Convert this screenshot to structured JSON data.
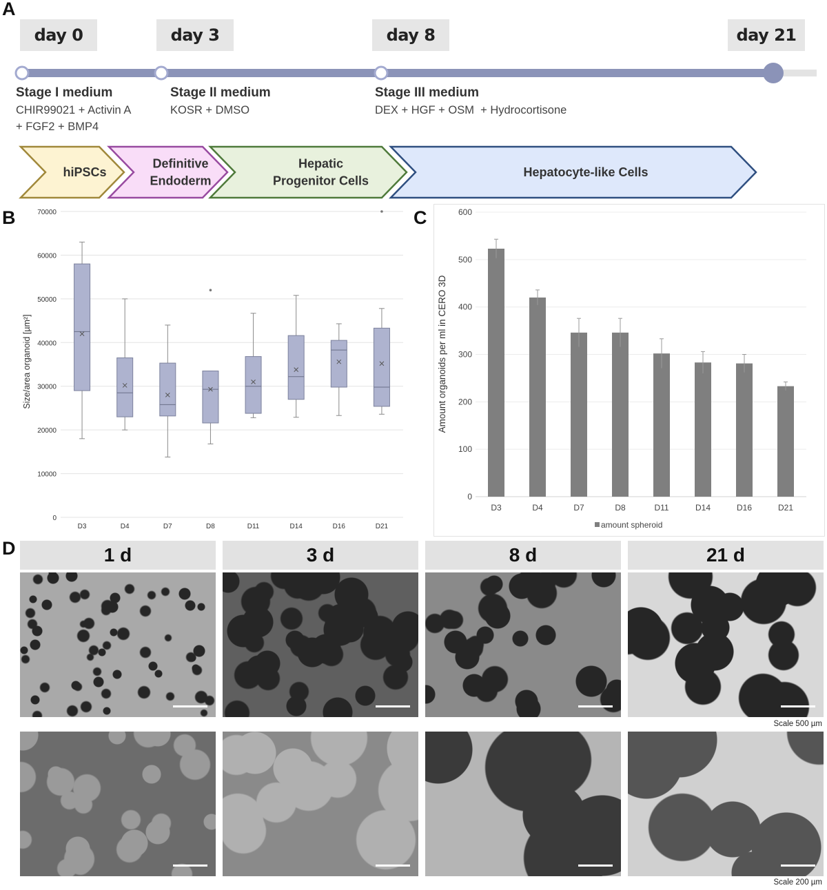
{
  "panel_letters": {
    "a": "A",
    "b": "B",
    "c": "C",
    "d": "D"
  },
  "timeline": {
    "days": [
      "day 0",
      "day 3",
      "day 8",
      "day 21"
    ],
    "stages": [
      {
        "title": "Stage I medium",
        "lines": [
          "CHIR99021 + Activin A",
          "+ FGF2 + BMP4"
        ]
      },
      {
        "title": "Stage II medium",
        "lines": [
          "KOSR + DMSO"
        ]
      },
      {
        "title": "Stage III medium",
        "lines": [
          "DEX + HGF + OSM  + Hydrocortisone"
        ]
      }
    ],
    "line_color": "#8b93b8",
    "cell_types": [
      {
        "lines": [
          "hiPSCs"
        ],
        "fill": "#fdf3d2",
        "stroke": "#a0883a"
      },
      {
        "lines": [
          "Definitive",
          "Endoderm"
        ],
        "fill": "#f9ddf8",
        "stroke": "#984aa0"
      },
      {
        "lines": [
          "Hepatic",
          "Progenitor Cells"
        ],
        "fill": "#e8f1dd",
        "stroke": "#4e7a3a"
      },
      {
        "lines": [
          "Hepatocyte-like Cells"
        ],
        "fill": "#dee8fb",
        "stroke": "#2f4f80"
      }
    ]
  },
  "chart_data": [
    {
      "type": "box",
      "panel": "B",
      "ylabel": "Size/area organoid [µm²]",
      "xlabel": "",
      "categories": [
        "D3",
        "D4",
        "D7",
        "D8",
        "D11",
        "D14",
        "D16",
        "D21"
      ],
      "ylim": [
        0,
        70000
      ],
      "yticks": [
        "0",
        "10000",
        "20000",
        "30000",
        "40000",
        "50000",
        "60000",
        "70000"
      ],
      "grid": true,
      "color": "#aeb3cf",
      "boxes": [
        {
          "min": 18000,
          "q1": 29000,
          "median": 42500,
          "q3": 58000,
          "max": 63000,
          "mean": 42000,
          "outliers": []
        },
        {
          "min": 20000,
          "q1": 23000,
          "median": 28500,
          "q3": 36500,
          "max": 50000,
          "mean": 30200,
          "outliers": []
        },
        {
          "min": 13800,
          "q1": 23200,
          "median": 25800,
          "q3": 35300,
          "max": 44000,
          "mean": 28000,
          "outliers": []
        },
        {
          "min": 16800,
          "q1": 21600,
          "median": 29300,
          "q3": 33500,
          "max": 33500,
          "mean": 29300,
          "outliers": [
            52000
          ]
        },
        {
          "min": 22800,
          "q1": 23800,
          "median": 30000,
          "q3": 36800,
          "max": 46700,
          "mean": 31000,
          "outliers": []
        },
        {
          "min": 22900,
          "q1": 27000,
          "median": 32200,
          "q3": 41600,
          "max": 50800,
          "mean": 33800,
          "outliers": []
        },
        {
          "min": 23300,
          "q1": 29800,
          "median": 38300,
          "q3": 40500,
          "max": 44300,
          "mean": 35600,
          "outliers": []
        },
        {
          "min": 23600,
          "q1": 25400,
          "median": 29800,
          "q3": 43300,
          "max": 47800,
          "mean": 35200,
          "outliers": [
            70000
          ]
        }
      ]
    },
    {
      "type": "bar",
      "panel": "C",
      "ylabel": "Amount organoids per ml in CERO 3D",
      "xlabel": "",
      "categories": [
        "D3",
        "D4",
        "D7",
        "D8",
        "D11",
        "D14",
        "D16",
        "D21"
      ],
      "ylim": [
        0,
        600
      ],
      "yticks": [
        "0",
        "100",
        "200",
        "300",
        "400",
        "500",
        "600"
      ],
      "grid": true,
      "legend": "bottom",
      "color": "#7f7f7f",
      "series": [
        {
          "name": "amount spheroid",
          "values": [
            523,
            420,
            346,
            346,
            302,
            283,
            281,
            233
          ],
          "errors": [
            20,
            16,
            30,
            30,
            31,
            23,
            19,
            9
          ]
        }
      ]
    }
  ],
  "micrographs": {
    "columns": [
      "1 d",
      "3 d",
      "8 d",
      "21 d"
    ],
    "scales": [
      "Scale 500 µm",
      "Scale 200 µm"
    ]
  }
}
